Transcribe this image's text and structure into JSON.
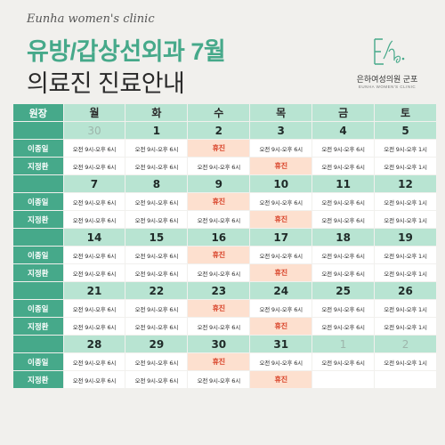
{
  "header": {
    "script_title": "Eunha women's clinic",
    "title_line1": "유방/갑상선외과 7월",
    "title_line2": "의료진 진료안내",
    "logo_name": "은하여성의원 군포",
    "logo_sub": "EUNHA WOMEN'S CLINIC"
  },
  "table": {
    "corner_label": "원장",
    "weekdays": [
      "월",
      "화",
      "수",
      "목",
      "금",
      "토"
    ],
    "weeks": [
      {
        "dates": [
          "30",
          "1",
          "2",
          "3",
          "4",
          "5"
        ],
        "doctors": [
          {
            "name": "이종일",
            "cells": [
              "오전 9시-오후 6시",
              "오전 9시-오후 6시",
              "휴진",
              "오전 9시-오후 6시",
              "오전 9시-오후 6시",
              "오전 9시-오후 1시"
            ]
          },
          {
            "name": "지정환",
            "cells": [
              "오전 9시-오후 6시",
              "오전 9시-오후 6시",
              "오전 9시-오후 6시",
              "휴진",
              "오전 9시-오후 6시",
              "오전 9시-오후 1시"
            ]
          }
        ]
      },
      {
        "dates": [
          "7",
          "8",
          "9",
          "10",
          "11",
          "12"
        ],
        "doctors": [
          {
            "name": "이종일",
            "cells": [
              "오전 9시-오후 6시",
              "오전 9시-오후 6시",
              "휴진",
              "오전 9시-오후 6시",
              "오전 9시-오후 6시",
              "오전 9시-오후 1시"
            ]
          },
          {
            "name": "지정환",
            "cells": [
              "오전 9시-오후 6시",
              "오전 9시-오후 6시",
              "오전 9시-오후 6시",
              "휴진",
              "오전 9시-오후 6시",
              "오전 9시-오후 1시"
            ]
          }
        ]
      },
      {
        "dates": [
          "14",
          "15",
          "16",
          "17",
          "18",
          "19"
        ],
        "doctors": [
          {
            "name": "이종일",
            "cells": [
              "오전 9시-오후 6시",
              "오전 9시-오후 6시",
              "휴진",
              "오전 9시-오후 6시",
              "오전 9시-오후 6시",
              "오전 9시-오후 1시"
            ]
          },
          {
            "name": "지정환",
            "cells": [
              "오전 9시-오후 6시",
              "오전 9시-오후 6시",
              "오전 9시-오후 6시",
              "휴진",
              "오전 9시-오후 6시",
              "오전 9시-오후 1시"
            ]
          }
        ]
      },
      {
        "dates": [
          "21",
          "22",
          "23",
          "24",
          "25",
          "26"
        ],
        "doctors": [
          {
            "name": "이종일",
            "cells": [
              "오전 9시-오후 6시",
              "오전 9시-오후 6시",
              "휴진",
              "오전 9시-오후 6시",
              "오전 9시-오후 6시",
              "오전 9시-오후 1시"
            ]
          },
          {
            "name": "지정환",
            "cells": [
              "오전 9시-오후 6시",
              "오전 9시-오후 6시",
              "오전 9시-오후 6시",
              "휴진",
              "오전 9시-오후 6시",
              "오전 9시-오후 1시"
            ]
          }
        ]
      },
      {
        "dates": [
          "28",
          "29",
          "30",
          "31",
          "1",
          "2"
        ],
        "doctors": [
          {
            "name": "이종일",
            "cells": [
              "오전 9시-오후 6시",
              "오전 9시-오후 6시",
              "휴진",
              "오전 9시-오후 6시",
              "오전 9시-오후 6시",
              "오전 9시-오후 1시"
            ]
          },
          {
            "name": "지정환",
            "cells": [
              "오전 9시-오후 6시",
              "오전 9시-오후 6시",
              "오전 9시-오후 6시",
              "휴진",
              "",
              ""
            ]
          }
        ]
      }
    ],
    "muted_dates": [
      "0-0",
      "4-4",
      "4-5"
    ]
  },
  "colors": {
    "accent": "#46a98a",
    "header_cell": "#b8e4d2",
    "closed_bg": "#fde0cf",
    "closed_text": "#d9452b",
    "background": "#f1f0ed"
  },
  "icons": {
    "logo": "eunha-logo-icon"
  }
}
